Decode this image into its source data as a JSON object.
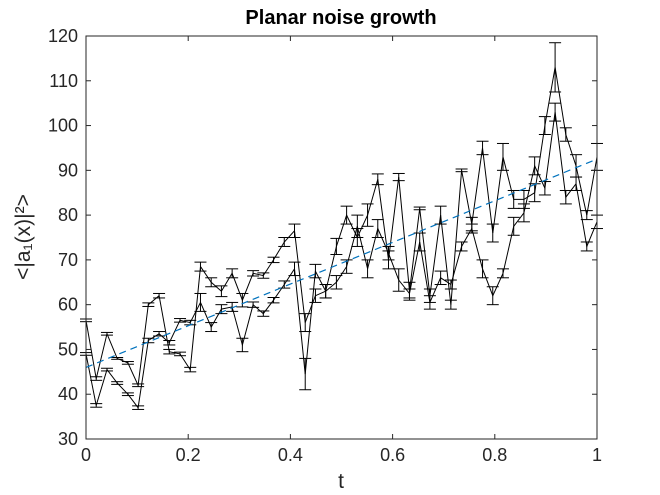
{
  "chart_data": {
    "type": "line",
    "title": "Planar noise growth",
    "xlabel": "t",
    "ylabel": "<|a₁(x)|²>",
    "xlim": [
      0,
      1
    ],
    "ylim": [
      30,
      120
    ],
    "xticks": [
      0,
      0.2,
      0.4,
      0.6,
      0.8,
      1
    ],
    "xtick_labels": [
      "0",
      "0.2",
      "0.4",
      "0.6",
      "0.8",
      "1"
    ],
    "yticks": [
      30,
      40,
      50,
      60,
      70,
      80,
      90,
      100,
      110,
      120
    ],
    "ytick_labels": [
      "30",
      "40",
      "50",
      "60",
      "70",
      "80",
      "90",
      "100",
      "110",
      "120"
    ],
    "grid": false,
    "box": true,
    "series": [
      {
        "style": "solid-with-errorbars",
        "color": "#000000",
        "x": [
          0.0,
          0.02,
          0.041,
          0.061,
          0.082,
          0.102,
          0.122,
          0.143,
          0.163,
          0.184,
          0.204,
          0.224,
          0.245,
          0.265,
          0.286,
          0.306,
          0.327,
          0.347,
          0.367,
          0.388,
          0.408,
          0.429,
          0.449,
          0.469,
          0.49,
          0.51,
          0.531,
          0.551,
          0.571,
          0.592,
          0.612,
          0.633,
          0.653,
          0.673,
          0.694,
          0.714,
          0.735,
          0.755,
          0.776,
          0.796,
          0.816,
          0.837,
          0.857,
          0.878,
          0.898,
          0.918,
          0.939,
          0.959,
          0.98,
          1.0
        ],
        "y": [
          56.5,
          43.5,
          53.5,
          48.0,
          47.0,
          42.0,
          60.0,
          62.0,
          49.5,
          49.0,
          45.5,
          68.5,
          65.0,
          63.0,
          67.0,
          61.0,
          67.0,
          66.5,
          70.0,
          74.0,
          76.5,
          56.0,
          62.0,
          63.0,
          73.0,
          80.0,
          75.0,
          80.0,
          88.0,
          70.0,
          88.5,
          63.0,
          81.5,
          62.0,
          80.0,
          60.0,
          90.0,
          78.0,
          95.0,
          76.0,
          93.0,
          83.5,
          83.5,
          85.0,
          100.0,
          113.0,
          98.0,
          91.0,
          80.0,
          93.0
        ],
        "error": [
          0.3,
          0.4,
          0.3,
          0.2,
          0.3,
          0.3,
          0.4,
          0.5,
          0.5,
          0.4,
          0.5,
          1.0,
          1.0,
          1.2,
          1.0,
          1.5,
          0.6,
          0.6,
          0.6,
          1.0,
          1.5,
          2.0,
          1.5,
          1.5,
          1.8,
          2.0,
          2.0,
          2.5,
          1.2,
          2.0,
          0.8,
          2.0,
          0.3,
          1.5,
          2.0,
          1.0,
          0.3,
          1.5,
          1.5,
          2.0,
          3.0,
          2.0,
          2.0,
          2.0,
          2.0,
          5.5,
          1.5,
          2.5,
          1.0,
          3.0
        ]
      },
      {
        "style": "solid-with-errorbars",
        "color": "#000000",
        "x": [
          0.0,
          0.02,
          0.041,
          0.061,
          0.082,
          0.102,
          0.122,
          0.143,
          0.163,
          0.184,
          0.204,
          0.224,
          0.245,
          0.265,
          0.286,
          0.306,
          0.327,
          0.347,
          0.367,
          0.388,
          0.408,
          0.429,
          0.449,
          0.469,
          0.49,
          0.51,
          0.531,
          0.551,
          0.571,
          0.592,
          0.612,
          0.633,
          0.653,
          0.673,
          0.694,
          0.714,
          0.735,
          0.755,
          0.776,
          0.796,
          0.816,
          0.837,
          0.857,
          0.878,
          0.898,
          0.918,
          0.939,
          0.959,
          0.98,
          1.0
        ],
        "y": [
          49.0,
          37.5,
          45.5,
          42.5,
          40.0,
          37.0,
          52.0,
          53.5,
          51.5,
          56.5,
          56.0,
          60.5,
          55.0,
          59.0,
          59.5,
          51.0,
          60.0,
          58.0,
          61.0,
          64.5,
          68.0,
          44.5,
          67.5,
          63.0,
          65.0,
          68.5,
          77.5,
          68.0,
          77.0,
          71.5,
          65.5,
          62.5,
          74.0,
          60.5,
          66.0,
          64.5,
          73.0,
          77.0,
          68.0,
          62.0,
          67.0,
          77.5,
          80.5,
          91.0,
          86.0,
          103.0,
          84.0,
          87.0,
          73.0,
          78.5
        ],
        "error": [
          0.3,
          0.4,
          0.3,
          0.3,
          0.3,
          0.4,
          0.5,
          0.5,
          0.5,
          0.4,
          0.5,
          2.0,
          1.0,
          1.0,
          1.0,
          1.5,
          0.6,
          0.6,
          0.6,
          0.8,
          1.5,
          3.5,
          1.5,
          1.5,
          1.5,
          1.5,
          2.5,
          2.0,
          2.0,
          1.5,
          2.5,
          1.0,
          2.0,
          1.5,
          1.5,
          1.0,
          1.0,
          1.0,
          2.0,
          2.0,
          1.0,
          2.0,
          2.0,
          2.0,
          1.5,
          2.0,
          1.5,
          1.5,
          1.0,
          1.5
        ]
      },
      {
        "style": "dashed-fit",
        "color": "#0072BD",
        "x": [
          0,
          1
        ],
        "y": [
          46.0,
          92.5
        ]
      }
    ]
  }
}
